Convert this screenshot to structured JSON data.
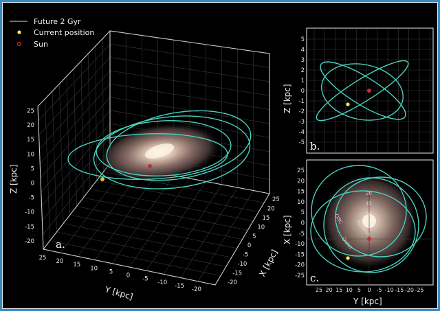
{
  "legend": {
    "items": [
      {
        "label": "Future 2 Gyr",
        "marker": "line",
        "color": "#49d3c0"
      },
      {
        "label": "Current position",
        "marker": "dot",
        "color": "#f2f23a"
      },
      {
        "label": "Sun",
        "marker": "circle",
        "color": "#c0302a"
      }
    ],
    "placement": "top-left"
  },
  "chart_data": [
    {
      "panel": "a.",
      "type": "line",
      "projection": "3d",
      "xlabel": "Y [kpc]",
      "ylabel": "X [kpc]",
      "zlabel": "Z [kpc]",
      "y_ticks": [
        "25",
        "20",
        "15",
        "10",
        "5",
        "0",
        "-5",
        "-10",
        "-15",
        "-20"
      ],
      "x_ticks": [
        "25",
        "20",
        "15",
        "10",
        "5",
        "0",
        "-5",
        "-10",
        "-15",
        "-20"
      ],
      "z_ticks": [
        "25",
        "20",
        "15",
        "10",
        "5",
        "0",
        "-5",
        "-10",
        "-15",
        "-20"
      ],
      "grid": true,
      "background_image": "Milky Way galaxy",
      "series": [
        {
          "name": "Future 2 Gyr",
          "kind": "orbit"
        }
      ],
      "markers": {
        "current_position": {
          "X": -17,
          "Y": 10,
          "Z": -1.3
        },
        "sun": {
          "X": -8,
          "Y": 0,
          "Z": 0
        }
      }
    },
    {
      "panel": "b.",
      "type": "line",
      "ylabel": "Z [kpc]",
      "y_ticks": [
        "5",
        "4",
        "3",
        "2",
        "1",
        "0",
        "-1",
        "-2",
        "-3",
        "-4",
        "-5"
      ],
      "ylim": [
        -5.8,
        6
      ],
      "grid": true,
      "markers": {
        "current_position": {
          "Z": -1.3
        },
        "sun": {
          "Z": 0
        }
      }
    },
    {
      "panel": "c.",
      "type": "line",
      "xlabel": "Y [kpc]",
      "ylabel": "X [kpc]",
      "x_ticks": [
        "25",
        "20",
        "15",
        "10",
        "5",
        "0",
        "-5",
        "-10",
        "-15",
        "-20",
        "-25"
      ],
      "y_ticks": [
        "25",
        "20",
        "15",
        "10",
        "5",
        "0",
        "-5",
        "-10",
        "-15",
        "-20",
        "-25"
      ],
      "xlim": [
        30,
        -30
      ],
      "ylim": [
        -30,
        30
      ],
      "background_image": "Milky Way galaxy face-on",
      "radius_labels": [
        "20",
        "15",
        "10"
      ],
      "arm_labels": [
        "OSC",
        "Perseus",
        "Outer"
      ],
      "markers": {
        "current_position": {
          "X": -17,
          "Y": 10
        },
        "sun": {
          "X": -8,
          "Y": 0
        }
      }
    }
  ]
}
